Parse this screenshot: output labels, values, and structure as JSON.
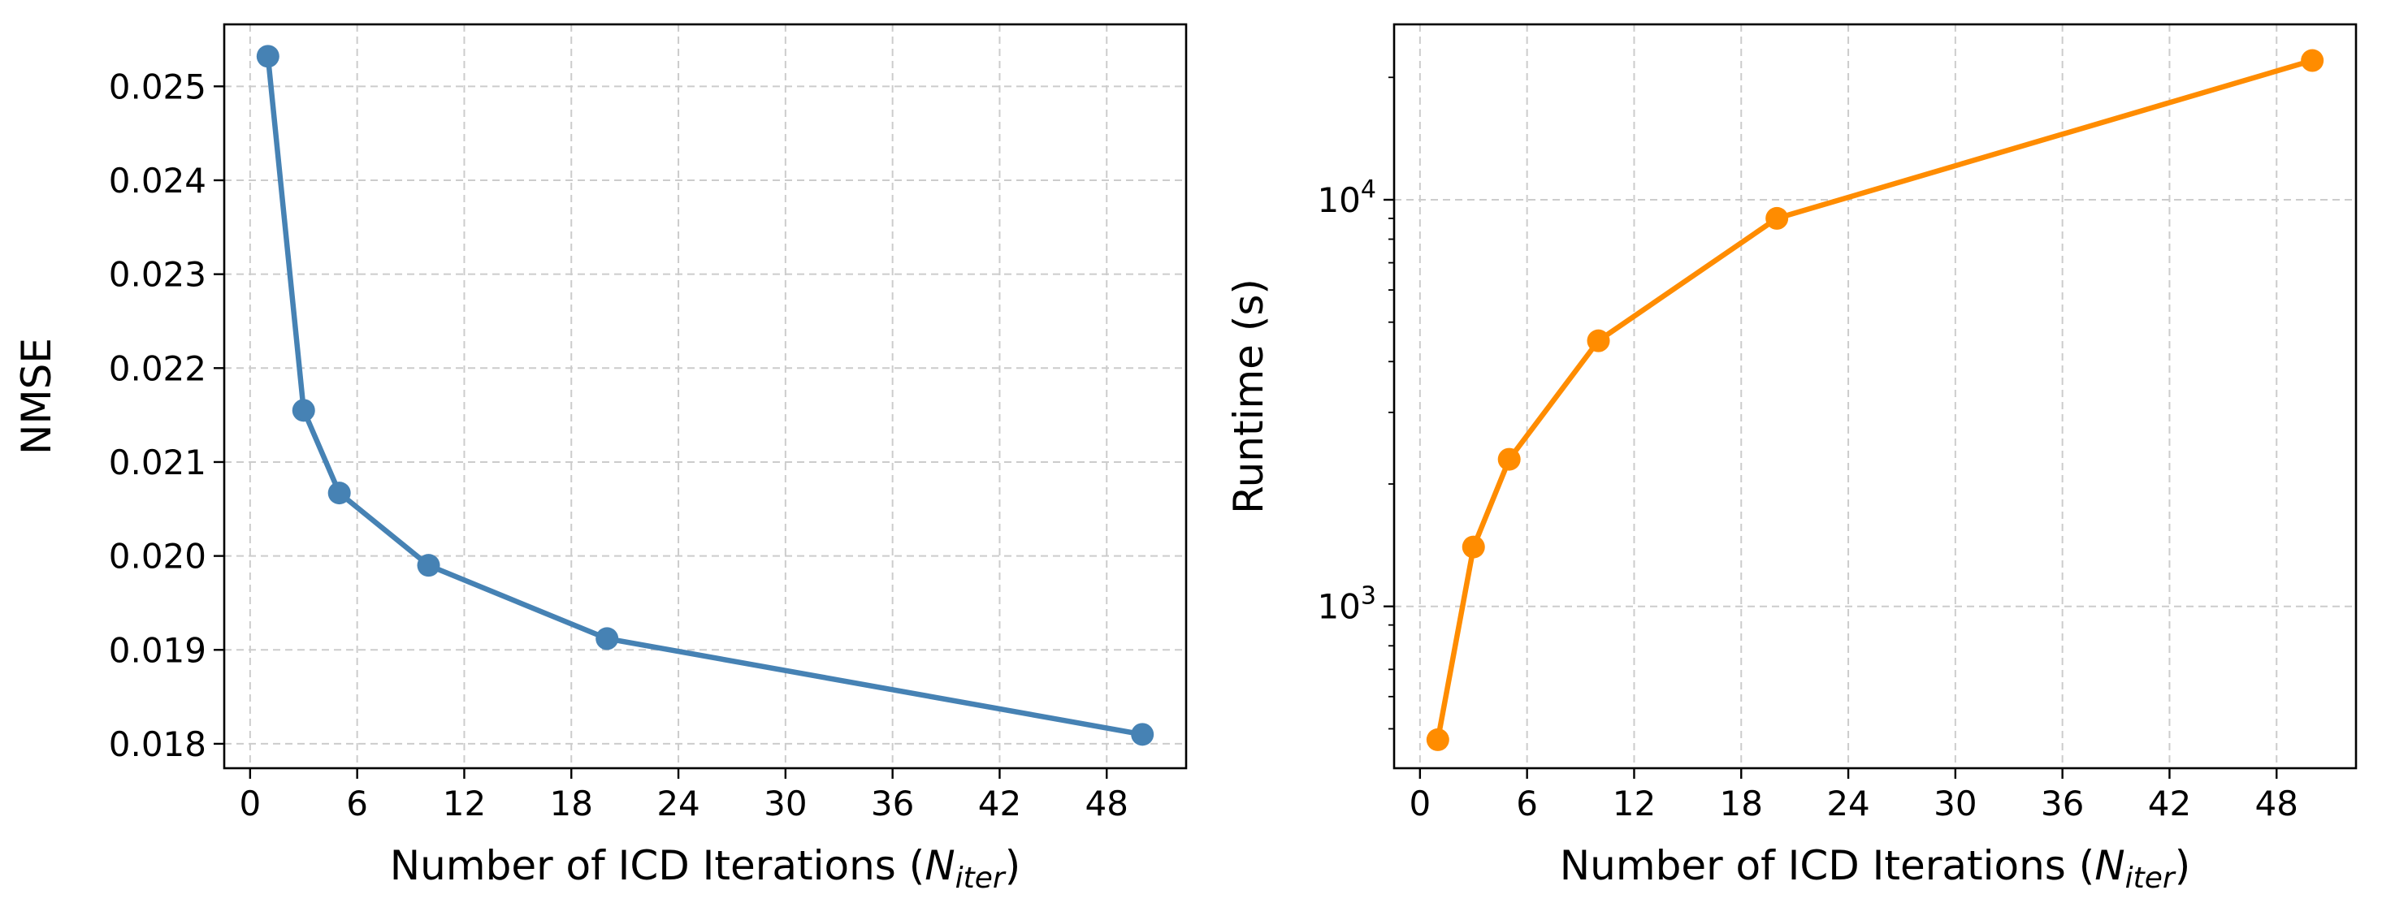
{
  "chart_data": [
    {
      "type": "line",
      "title": "",
      "xlabel_prefix": "Number of ICD Iterations (",
      "xlabel_math_base": "N",
      "xlabel_math_sub": "iter",
      "xlabel_suffix": ")",
      "ylabel": "NMSE",
      "yscale": "linear",
      "xlim": [
        -1.45,
        52.45
      ],
      "ylim": [
        0.01774,
        0.02566
      ],
      "xticks": [
        0,
        6,
        12,
        18,
        24,
        30,
        36,
        42,
        48
      ],
      "xtick_labels": [
        "0",
        "6",
        "12",
        "18",
        "24",
        "30",
        "36",
        "42",
        "48"
      ],
      "yticks": [
        0.018,
        0.019,
        0.02,
        0.021,
        0.022,
        0.023,
        0.024,
        0.025
      ],
      "ytick_labels": [
        "0.018",
        "0.019",
        "0.020",
        "0.021",
        "0.022",
        "0.023",
        "0.024",
        "0.025"
      ],
      "grid": true,
      "color": "#4682b4",
      "series": [
        {
          "name": "NMSE",
          "x": [
            1,
            3,
            5,
            10,
            20,
            50
          ],
          "y": [
            0.02532,
            0.02155,
            0.02067,
            0.0199,
            0.01912,
            0.0181
          ]
        }
      ]
    },
    {
      "type": "line",
      "title": "",
      "xlabel_prefix": "Number of ICD Iterations (",
      "xlabel_math_base": "N",
      "xlabel_math_sub": "iter",
      "xlabel_suffix": ")",
      "ylabel": "Runtime (s)",
      "yscale": "log",
      "xlim": [
        -1.45,
        52.45
      ],
      "ylim": [
        400,
        27000
      ],
      "xticks": [
        0,
        6,
        12,
        18,
        24,
        30,
        36,
        42,
        48
      ],
      "xtick_labels": [
        "0",
        "6",
        "12",
        "18",
        "24",
        "30",
        "36",
        "42",
        "48"
      ],
      "yticks_major": [
        1000,
        10000
      ],
      "ytick_major_labels": [
        {
          "base": "10",
          "exp": "3"
        },
        {
          "base": "10",
          "exp": "4"
        }
      ],
      "yticks_minor": [
        500,
        600,
        700,
        800,
        900,
        2000,
        3000,
        4000,
        5000,
        6000,
        7000,
        8000,
        9000,
        20000
      ],
      "grid": true,
      "color": "#ff8c00",
      "series": [
        {
          "name": "Runtime",
          "x": [
            1,
            3,
            5,
            10,
            20,
            50
          ],
          "y": [
            470,
            1400,
            2300,
            4500,
            9000,
            22000
          ]
        }
      ]
    }
  ]
}
